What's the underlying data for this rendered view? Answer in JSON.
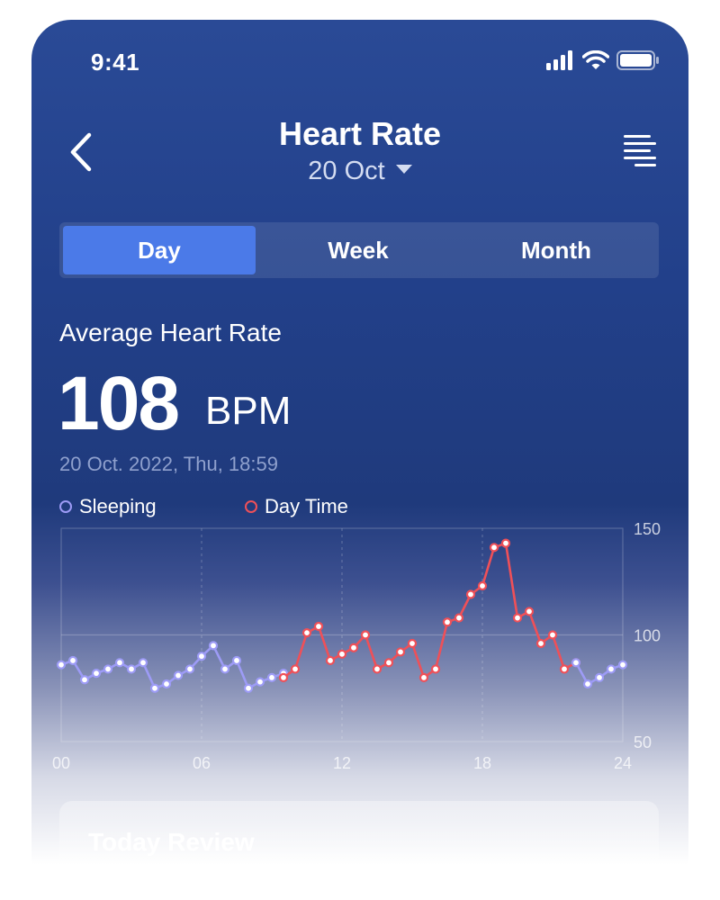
{
  "status_bar": {
    "time": "9:41"
  },
  "header": {
    "title": "Heart Rate",
    "date": "20 Oct"
  },
  "tabs": [
    {
      "label": "Day",
      "active": true
    },
    {
      "label": "Week",
      "active": false
    },
    {
      "label": "Month",
      "active": false
    }
  ],
  "summary": {
    "label": "Average Heart Rate",
    "value": "108",
    "unit": "BPM",
    "timestamp": "20 Oct. 2022, Thu, 18:59"
  },
  "review": {
    "title": "Today Review"
  },
  "colors": {
    "sleeping": "#9d9bf6",
    "day_time": "#ef5058",
    "accent": "#4b7ae8"
  },
  "chart_data": {
    "type": "line",
    "x_ticks": [
      "00",
      "06",
      "12",
      "18",
      "24"
    ],
    "y_ticks": [
      "150",
      "100",
      "50"
    ],
    "xlim": [
      0,
      24
    ],
    "ylim": [
      50,
      150
    ],
    "grid": true,
    "legend_position": "top-left",
    "series": [
      {
        "name": "Sleeping",
        "color": "#9d9bf6",
        "x": [
          0.0,
          0.5,
          1.0,
          1.5,
          2.0,
          2.5,
          3.0,
          3.5,
          4.0,
          4.5,
          5.0,
          5.5,
          6.0,
          6.5,
          7.0,
          7.5,
          8.0,
          8.5,
          9.0,
          9.5
        ],
        "y": [
          86,
          88,
          79,
          82,
          84,
          87,
          84,
          87,
          75,
          77,
          81,
          84,
          90,
          95,
          84,
          88,
          75,
          78,
          80,
          82
        ]
      },
      {
        "name": "Day Time",
        "color": "#ef5058",
        "x": [
          9.5,
          10.0,
          10.5,
          11.0,
          11.5,
          12.0,
          12.5,
          13.0,
          13.5,
          14.0,
          14.5,
          15.0,
          15.5,
          16.0,
          16.5,
          17.0,
          17.5,
          18.0,
          18.5,
          19.0,
          19.5,
          20.0,
          20.5,
          21.0,
          21.5,
          22.0
        ],
        "y": [
          80,
          84,
          101,
          104,
          88,
          91,
          94,
          100,
          84,
          87,
          92,
          96,
          80,
          84,
          106,
          108,
          119,
          123,
          141,
          143,
          108,
          111,
          96,
          100,
          84,
          87
        ]
      },
      {
        "name": "Sleeping",
        "color": "#9d9bf6",
        "x": [
          22.0,
          22.5,
          23.0,
          23.5,
          24.0
        ],
        "y": [
          87,
          77,
          80,
          84,
          86
        ]
      }
    ]
  }
}
